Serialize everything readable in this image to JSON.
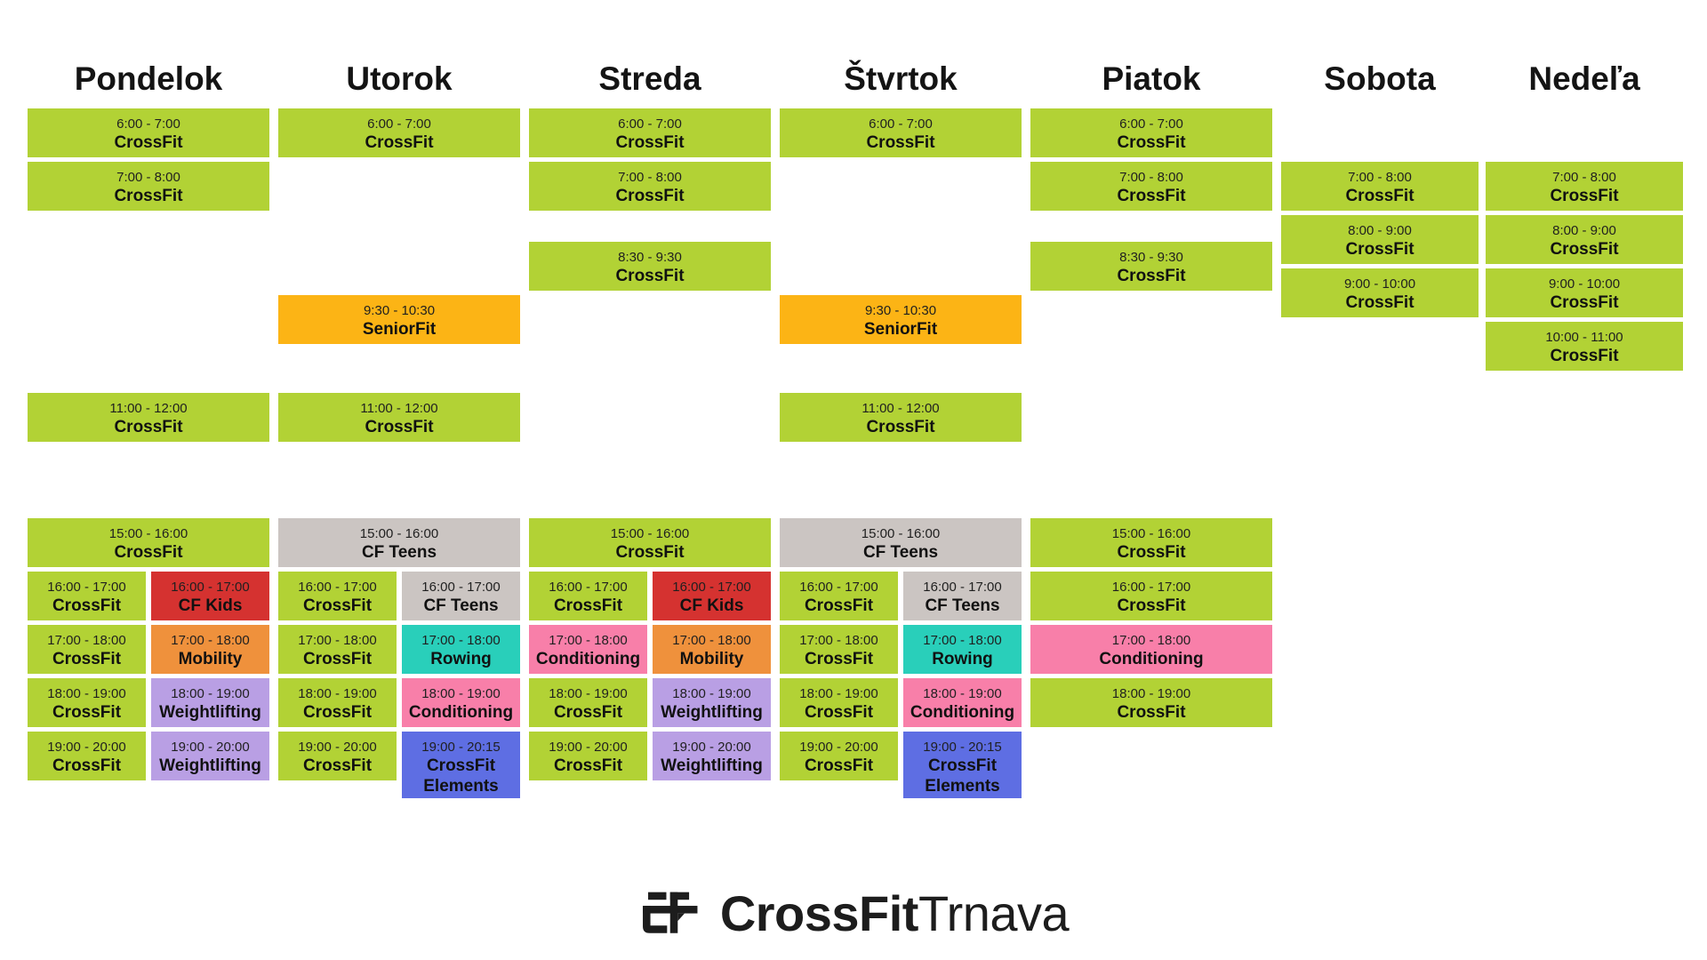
{
  "page": {
    "background": "#ffffff",
    "text_color": "#141414"
  },
  "class_colors": {
    "crossfit": "#b2d235",
    "seniorfit": "#fcb415",
    "cfteens": "#cbc5c2",
    "cfkids": "#d53230",
    "mobility": "#ef913c",
    "rowing": "#29cfba",
    "conditioning": "#f87fa9",
    "weightlifting": "#b99fe4",
    "elements": "#5e6ee3"
  },
  "days": [
    {
      "id": "pondelok",
      "name": "Pondelok",
      "slots": [
        {
          "time": "6:00 - 7:00",
          "label": "CrossFit",
          "type": "crossfit",
          "pos": "full"
        },
        {
          "time": "7:00 - 8:00",
          "label": "CrossFit",
          "type": "crossfit",
          "pos": "full"
        },
        {
          "time": "11:00 - 12:00",
          "label": "CrossFit",
          "type": "crossfit",
          "pos": "full"
        },
        {
          "time": "15:00 - 16:00",
          "label": "CrossFit",
          "type": "crossfit",
          "pos": "full"
        },
        {
          "time": "16:00 - 17:00",
          "label": "CrossFit",
          "type": "crossfit",
          "pos": "left"
        },
        {
          "time": "16:00 - 17:00",
          "label": "CF Kids",
          "type": "cfkids",
          "pos": "right"
        },
        {
          "time": "17:00 - 18:00",
          "label": "CrossFit",
          "type": "crossfit",
          "pos": "left"
        },
        {
          "time": "17:00 - 18:00",
          "label": "Mobility",
          "type": "mobility",
          "pos": "right"
        },
        {
          "time": "18:00 - 19:00",
          "label": "CrossFit",
          "type": "crossfit",
          "pos": "left"
        },
        {
          "time": "18:00 - 19:00",
          "label": "Weightlifting",
          "type": "weightlifting",
          "pos": "right"
        },
        {
          "time": "19:00 - 20:00",
          "label": "CrossFit",
          "type": "crossfit",
          "pos": "left"
        },
        {
          "time": "19:00 - 20:00",
          "label": "Weightlifting",
          "type": "weightlifting",
          "pos": "right"
        }
      ]
    },
    {
      "id": "utorok",
      "name": "Utorok",
      "slots": [
        {
          "time": "6:00 - 7:00",
          "label": "CrossFit",
          "type": "crossfit",
          "pos": "full"
        },
        {
          "time": "9:30 - 10:30",
          "label": "SeniorFit",
          "type": "seniorfit",
          "pos": "full"
        },
        {
          "time": "11:00 - 12:00",
          "label": "CrossFit",
          "type": "crossfit",
          "pos": "full"
        },
        {
          "time": "15:00 - 16:00",
          "label": "CF Teens",
          "type": "cfteens",
          "pos": "full"
        },
        {
          "time": "16:00 - 17:00",
          "label": "CrossFit",
          "type": "crossfit",
          "pos": "left"
        },
        {
          "time": "16:00 - 17:00",
          "label": "CF Teens",
          "type": "cfteens",
          "pos": "right"
        },
        {
          "time": "17:00 - 18:00",
          "label": "CrossFit",
          "type": "crossfit",
          "pos": "left"
        },
        {
          "time": "17:00 - 18:00",
          "label": "Rowing",
          "type": "rowing",
          "pos": "right"
        },
        {
          "time": "18:00 - 19:00",
          "label": "CrossFit",
          "type": "crossfit",
          "pos": "left"
        },
        {
          "time": "18:00 - 19:00",
          "label": "Conditioning",
          "type": "conditioning",
          "pos": "right"
        },
        {
          "time": "19:00 - 20:00",
          "label": "CrossFit",
          "type": "crossfit",
          "pos": "left"
        },
        {
          "time": "19:00 - 20:15",
          "label": "CrossFit Elements",
          "type": "elements",
          "pos": "right"
        }
      ]
    },
    {
      "id": "streda",
      "name": "Streda",
      "slots": [
        {
          "time": "6:00 - 7:00",
          "label": "CrossFit",
          "type": "crossfit",
          "pos": "full"
        },
        {
          "time": "7:00 - 8:00",
          "label": "CrossFit",
          "type": "crossfit",
          "pos": "full"
        },
        {
          "time": "8:30 - 9:30",
          "label": "CrossFit",
          "type": "crossfit",
          "pos": "full"
        },
        {
          "time": "15:00 - 16:00",
          "label": "CrossFit",
          "type": "crossfit",
          "pos": "full"
        },
        {
          "time": "16:00 - 17:00",
          "label": "CrossFit",
          "type": "crossfit",
          "pos": "left"
        },
        {
          "time": "16:00 - 17:00",
          "label": "CF Kids",
          "type": "cfkids",
          "pos": "right"
        },
        {
          "time": "17:00 - 18:00",
          "label": "Conditioning",
          "type": "conditioning",
          "pos": "left"
        },
        {
          "time": "17:00 - 18:00",
          "label": "Mobility",
          "type": "mobility",
          "pos": "right"
        },
        {
          "time": "18:00 - 19:00",
          "label": "CrossFit",
          "type": "crossfit",
          "pos": "left"
        },
        {
          "time": "18:00 - 19:00",
          "label": "Weightlifting",
          "type": "weightlifting",
          "pos": "right"
        },
        {
          "time": "19:00 - 20:00",
          "label": "CrossFit",
          "type": "crossfit",
          "pos": "left"
        },
        {
          "time": "19:00 - 20:00",
          "label": "Weightlifting",
          "type": "weightlifting",
          "pos": "right"
        }
      ]
    },
    {
      "id": "stvrtok",
      "name": "Štvrtok",
      "slots": [
        {
          "time": "6:00 - 7:00",
          "label": "CrossFit",
          "type": "crossfit",
          "pos": "full"
        },
        {
          "time": "9:30 - 10:30",
          "label": "SeniorFit",
          "type": "seniorfit",
          "pos": "full"
        },
        {
          "time": "11:00 - 12:00",
          "label": "CrossFit",
          "type": "crossfit",
          "pos": "full"
        },
        {
          "time": "15:00 - 16:00",
          "label": "CF Teens",
          "type": "cfteens",
          "pos": "full"
        },
        {
          "time": "16:00 - 17:00",
          "label": "CrossFit",
          "type": "crossfit",
          "pos": "left"
        },
        {
          "time": "16:00 - 17:00",
          "label": "CF Teens",
          "type": "cfteens",
          "pos": "right"
        },
        {
          "time": "17:00 - 18:00",
          "label": "CrossFit",
          "type": "crossfit",
          "pos": "left"
        },
        {
          "time": "17:00 - 18:00",
          "label": "Rowing",
          "type": "rowing",
          "pos": "right"
        },
        {
          "time": "18:00 - 19:00",
          "label": "CrossFit",
          "type": "crossfit",
          "pos": "left"
        },
        {
          "time": "18:00 - 19:00",
          "label": "Conditioning",
          "type": "conditioning",
          "pos": "right"
        },
        {
          "time": "19:00 - 20:00",
          "label": "CrossFit",
          "type": "crossfit",
          "pos": "left"
        },
        {
          "time": "19:00 - 20:15",
          "label": "CrossFit Elements",
          "type": "elements",
          "pos": "right"
        }
      ]
    },
    {
      "id": "piatok",
      "name": "Piatok",
      "slots": [
        {
          "time": "6:00 - 7:00",
          "label": "CrossFit",
          "type": "crossfit",
          "pos": "full"
        },
        {
          "time": "7:00 - 8:00",
          "label": "CrossFit",
          "type": "crossfit",
          "pos": "full"
        },
        {
          "time": "8:30 - 9:30",
          "label": "CrossFit",
          "type": "crossfit",
          "pos": "full"
        },
        {
          "time": "15:00 - 16:00",
          "label": "CrossFit",
          "type": "crossfit",
          "pos": "full"
        },
        {
          "time": "16:00 - 17:00",
          "label": "CrossFit",
          "type": "crossfit",
          "pos": "full"
        },
        {
          "time": "17:00 - 18:00",
          "label": "Conditioning",
          "type": "conditioning",
          "pos": "full"
        },
        {
          "time": "18:00 - 19:00",
          "label": "CrossFit",
          "type": "crossfit",
          "pos": "full"
        }
      ]
    },
    {
      "id": "sobota",
      "name": "Sobota",
      "slots": [
        {
          "time": "7:00 - 8:00",
          "label": "CrossFit",
          "type": "crossfit",
          "pos": "full"
        },
        {
          "time": "8:00 - 9:00",
          "label": "CrossFit",
          "type": "crossfit",
          "pos": "full"
        },
        {
          "time": "9:00 - 10:00",
          "label": "CrossFit",
          "type": "crossfit",
          "pos": "full"
        }
      ]
    },
    {
      "id": "nedela",
      "name": "Nedeľa",
      "slots": [
        {
          "time": "7:00 - 8:00",
          "label": "CrossFit",
          "type": "crossfit",
          "pos": "full"
        },
        {
          "time": "8:00 - 9:00",
          "label": "CrossFit",
          "type": "crossfit",
          "pos": "full"
        },
        {
          "time": "9:00 - 10:00",
          "label": "CrossFit",
          "type": "crossfit",
          "pos": "full"
        },
        {
          "time": "10:00 - 11:00",
          "label": "CrossFit",
          "type": "crossfit",
          "pos": "full"
        }
      ]
    }
  ],
  "logo": {
    "bold": "CrossFit",
    "regular": "Trnava",
    "color": "#1d1d1d"
  }
}
